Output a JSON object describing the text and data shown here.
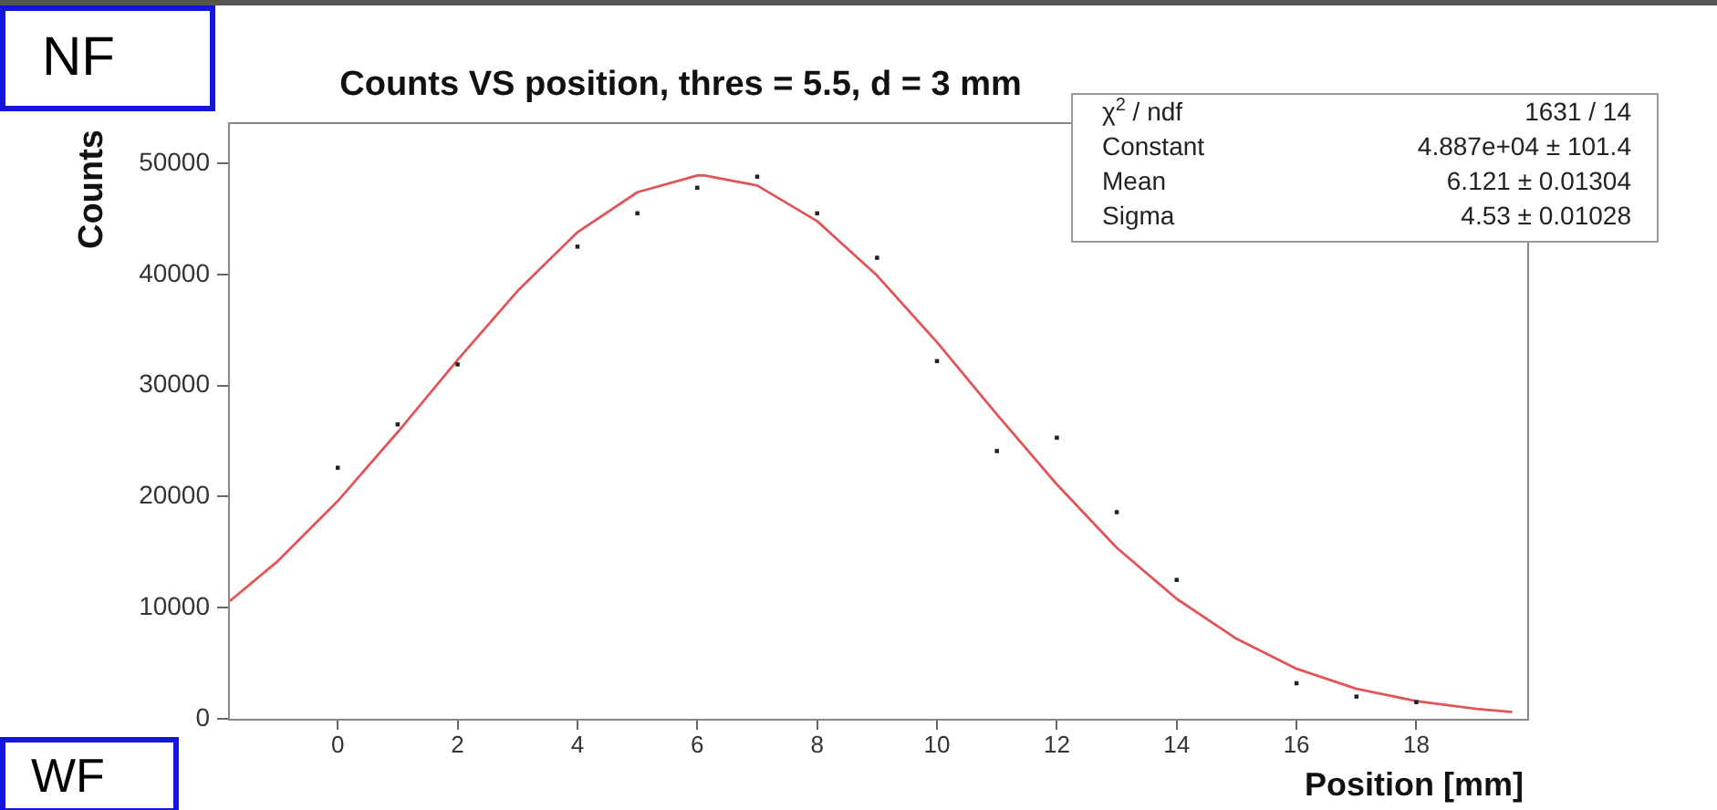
{
  "chart_data": {
    "type": "scatter",
    "title": "Counts VS position, thres = 5.5, d = 3 mm",
    "xlabel": "Position [mm]",
    "ylabel": "Counts",
    "xlim": [
      -1.83,
      19.85
    ],
    "ylim": [
      0,
      53700
    ],
    "xticks": [
      0,
      2,
      4,
      6,
      8,
      10,
      12,
      14,
      16,
      18
    ],
    "yticks": [
      0,
      10000,
      20000,
      30000,
      40000,
      50000
    ],
    "grid": false,
    "legend": false,
    "series": [
      {
        "type": "scatter",
        "marker": "square",
        "color": "#222222",
        "x": [
          0,
          1,
          2,
          4,
          5,
          6,
          7,
          8,
          9,
          10,
          11,
          12,
          13,
          14,
          16,
          17,
          18
        ],
        "values": [
          22600,
          26500,
          31900,
          42500,
          45500,
          47800,
          48800,
          45500,
          41500,
          32200,
          24100,
          25300,
          18600,
          12500,
          3200,
          2000,
          1500
        ]
      },
      {
        "type": "line",
        "marker": "none",
        "color": "#e05555",
        "x": [
          -1.8,
          -1,
          0,
          1,
          2,
          3,
          4,
          5,
          6,
          6.12,
          7,
          8,
          9,
          10,
          11,
          12,
          13,
          14,
          15,
          16,
          17,
          18,
          19,
          19.6
        ],
        "values": [
          10600,
          14200,
          19600,
          25800,
          32300,
          38500,
          43800,
          47400,
          48900,
          48900,
          48000,
          44800,
          39900,
          33900,
          27400,
          21100,
          15400,
          10800,
          7200,
          4500,
          2700,
          1600,
          900,
          600
        ]
      }
    ],
    "annotations": [
      "NF",
      "WF",
      "χ$^{2}$ / ndf",
      "1631 / 14",
      "Constant",
      "4.887e+04 ± 101.4",
      "Mean",
      "6.121 ± 0.01304",
      "Sigma",
      "4.53 ± 0.01028"
    ]
  }
}
